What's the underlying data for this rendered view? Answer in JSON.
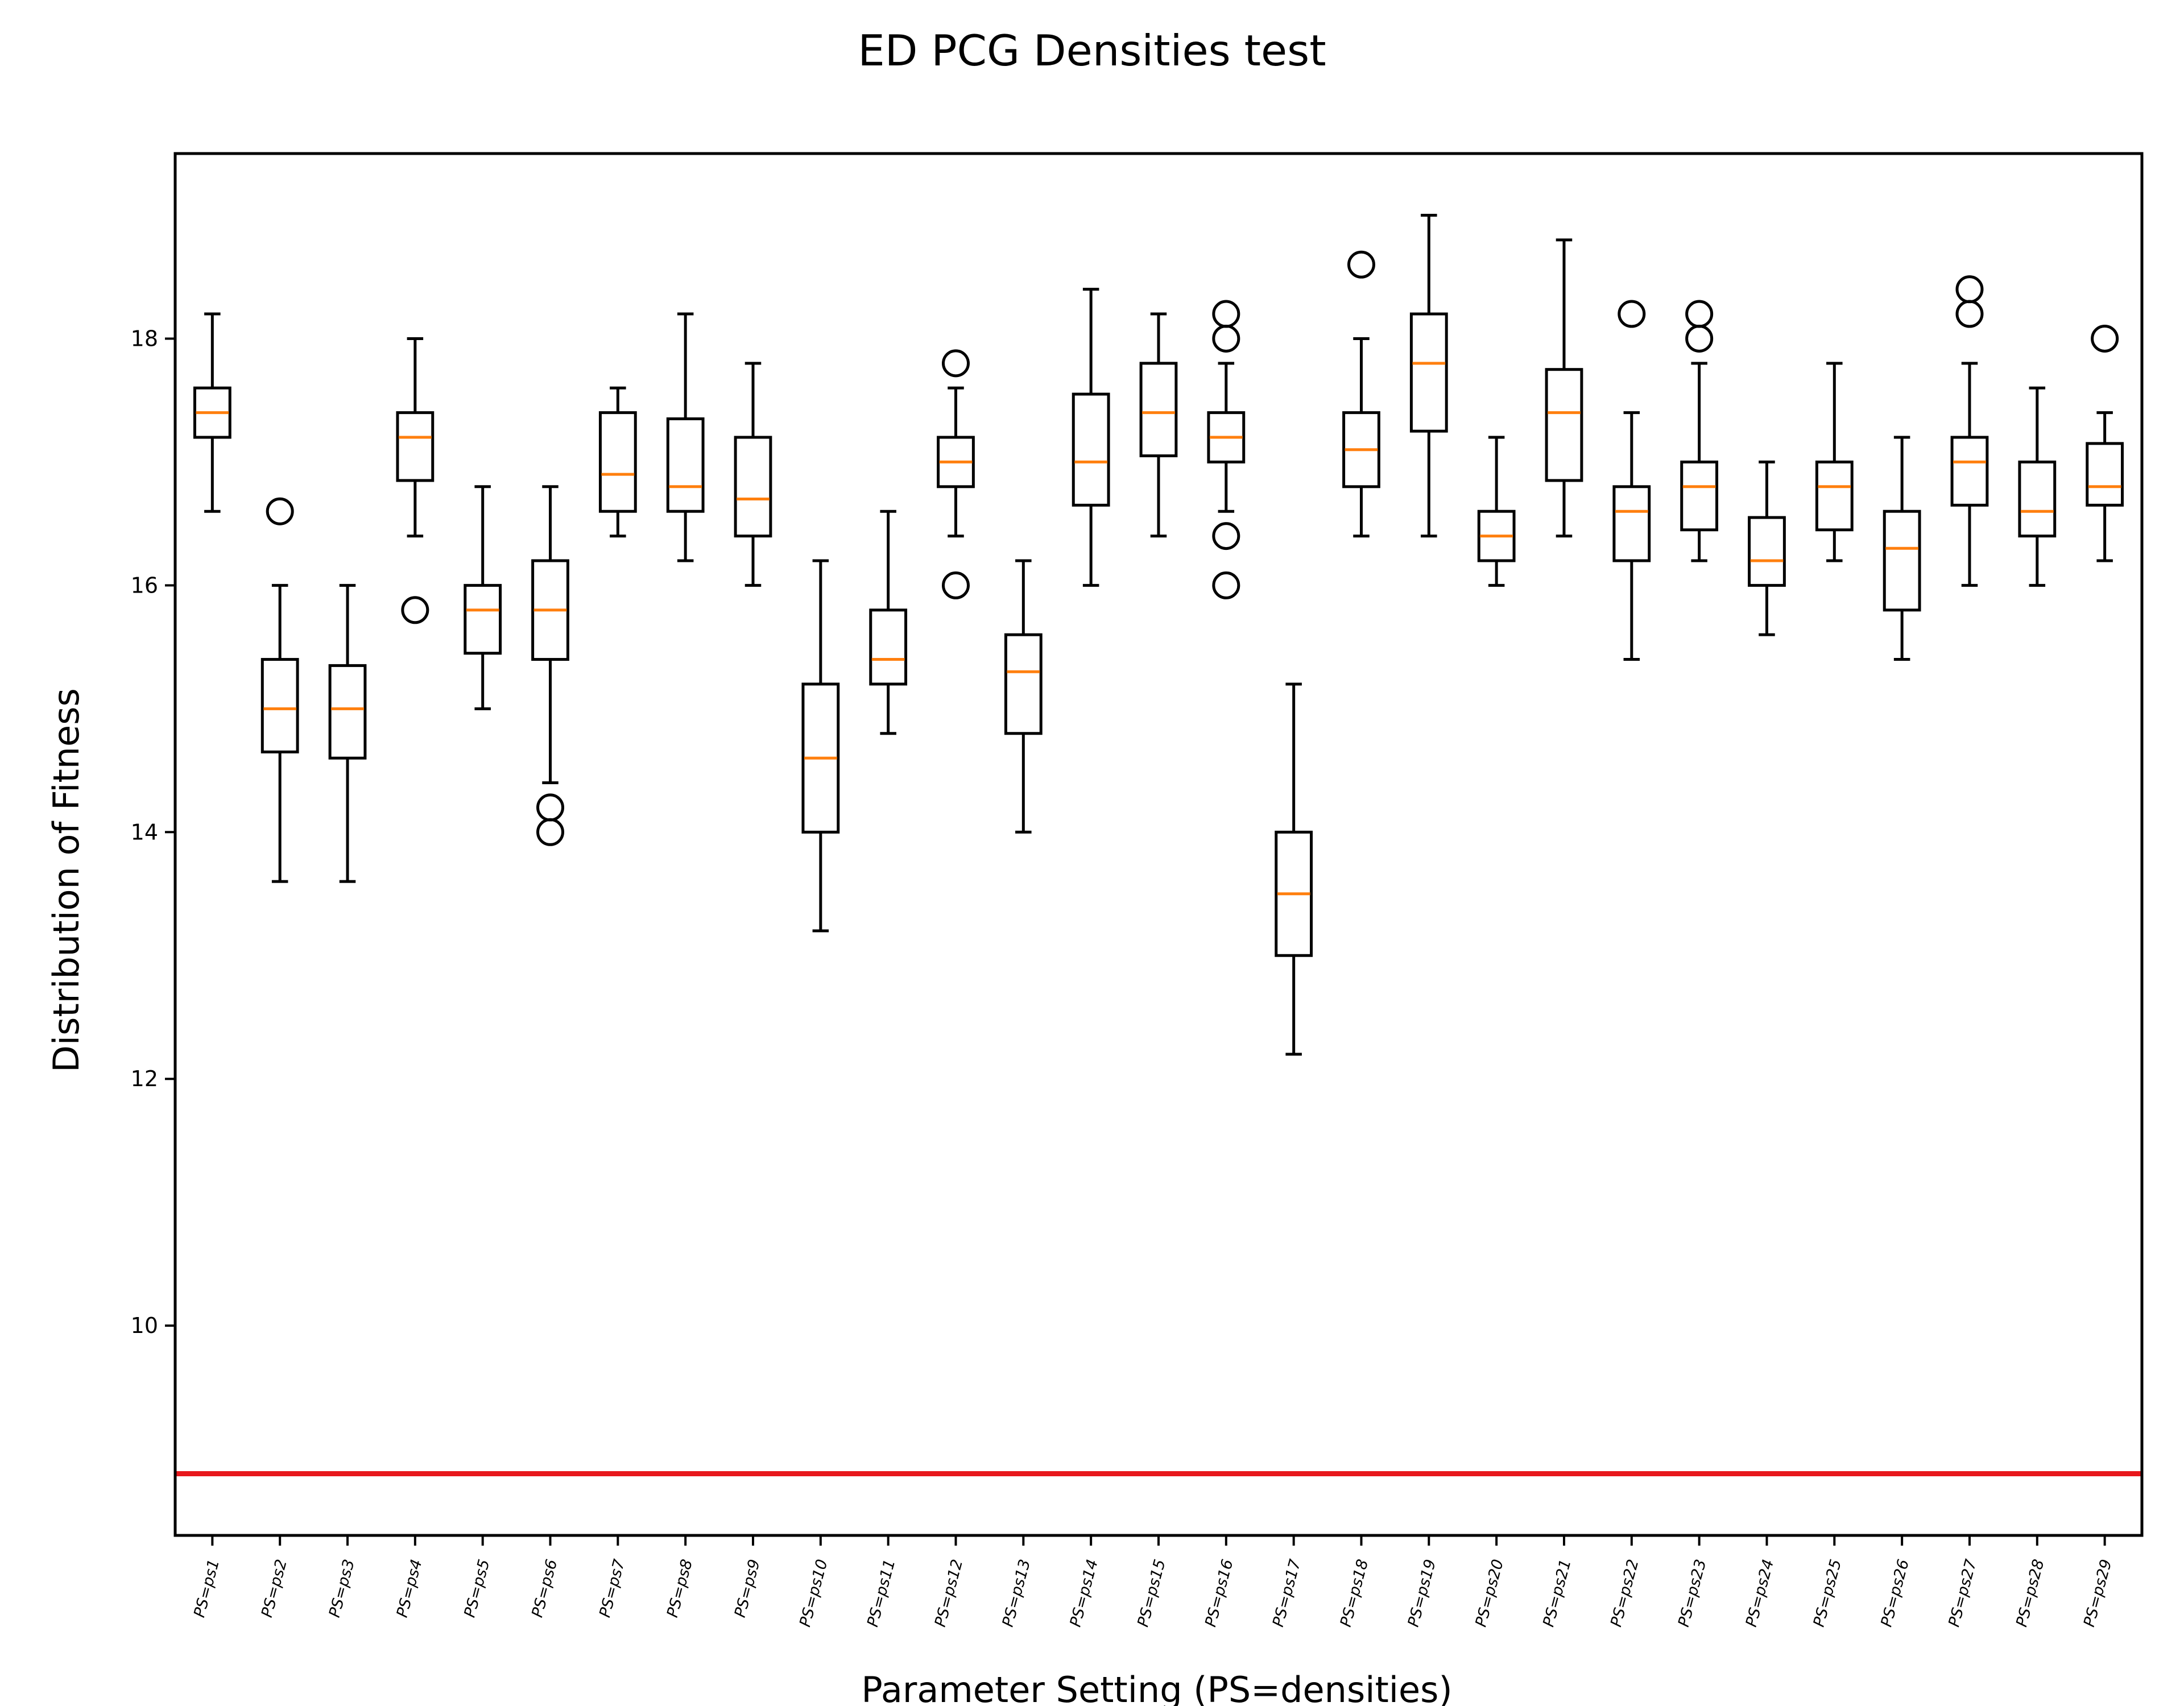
{
  "chart_data": {
    "type": "box",
    "title": "ED PCG Densities test",
    "xlabel": "Parameter Setting (PS=densities)",
    "ylabel": "Distribution of Fitness",
    "ylim": [
      8.3,
      19.5
    ],
    "yticks": [
      10,
      12,
      14,
      16,
      18
    ],
    "grid": false,
    "colors": {
      "box": "#000000",
      "median": "#ff7f0e",
      "reference_line": "#e8181c",
      "outlier": "#000000"
    },
    "reference_line": {
      "y": 8.8
    },
    "categories": [
      "PS=ps1",
      "PS=ps2",
      "PS=ps3",
      "PS=ps4",
      "PS=ps5",
      "PS=ps6",
      "PS=ps7",
      "PS=ps8",
      "PS=ps9",
      "PS=ps10",
      "PS=ps11",
      "PS=ps12",
      "PS=ps13",
      "PS=ps14",
      "PS=ps15",
      "PS=ps16",
      "PS=ps17",
      "PS=ps18",
      "PS=ps19",
      "PS=ps20",
      "PS=ps21",
      "PS=ps22",
      "PS=ps23",
      "PS=ps24",
      "PS=ps25",
      "PS=ps26",
      "PS=ps27",
      "PS=ps28",
      "PS=ps29"
    ],
    "boxes": [
      {
        "whislo": 16.6,
        "q1": 17.2,
        "med": 17.4,
        "q3": 17.6,
        "whishi": 18.2,
        "fliers": []
      },
      {
        "whislo": 13.6,
        "q1": 14.65,
        "med": 15.0,
        "q3": 15.4,
        "whishi": 16.0,
        "fliers": [
          16.6
        ]
      },
      {
        "whislo": 13.6,
        "q1": 14.6,
        "med": 15.0,
        "q3": 15.35,
        "whishi": 16.0,
        "fliers": []
      },
      {
        "whislo": 16.4,
        "q1": 16.85,
        "med": 17.2,
        "q3": 17.4,
        "whishi": 18.0,
        "fliers": [
          15.8
        ]
      },
      {
        "whislo": 15.0,
        "q1": 15.45,
        "med": 15.8,
        "q3": 16.0,
        "whishi": 16.8,
        "fliers": []
      },
      {
        "whislo": 14.4,
        "q1": 15.4,
        "med": 15.8,
        "q3": 16.2,
        "whishi": 16.8,
        "fliers": [
          14.2,
          14.0
        ]
      },
      {
        "whislo": 16.4,
        "q1": 16.6,
        "med": 16.9,
        "q3": 17.4,
        "whishi": 17.6,
        "fliers": []
      },
      {
        "whislo": 16.2,
        "q1": 16.6,
        "med": 16.8,
        "q3": 17.35,
        "whishi": 18.2,
        "fliers": []
      },
      {
        "whislo": 16.0,
        "q1": 16.4,
        "med": 16.7,
        "q3": 17.2,
        "whishi": 17.8,
        "fliers": []
      },
      {
        "whislo": 13.2,
        "q1": 14.0,
        "med": 14.6,
        "q3": 15.2,
        "whishi": 16.2,
        "fliers": []
      },
      {
        "whislo": 14.8,
        "q1": 15.2,
        "med": 15.4,
        "q3": 15.8,
        "whishi": 16.6,
        "fliers": []
      },
      {
        "whislo": 16.4,
        "q1": 16.8,
        "med": 17.0,
        "q3": 17.2,
        "whishi": 17.6,
        "fliers": [
          17.8,
          16.0
        ]
      },
      {
        "whislo": 14.0,
        "q1": 14.8,
        "med": 15.3,
        "q3": 15.6,
        "whishi": 16.2,
        "fliers": []
      },
      {
        "whislo": 16.0,
        "q1": 16.65,
        "med": 17.0,
        "q3": 17.55,
        "whishi": 18.4,
        "fliers": []
      },
      {
        "whislo": 16.4,
        "q1": 17.05,
        "med": 17.4,
        "q3": 17.8,
        "whishi": 18.2,
        "fliers": []
      },
      {
        "whislo": 16.6,
        "q1": 17.0,
        "med": 17.2,
        "q3": 17.4,
        "whishi": 17.8,
        "fliers": [
          18.2,
          18.0,
          16.4,
          16.0
        ]
      },
      {
        "whislo": 12.2,
        "q1": 13.0,
        "med": 13.5,
        "q3": 14.0,
        "whishi": 15.2,
        "fliers": []
      },
      {
        "whislo": 16.4,
        "q1": 16.8,
        "med": 17.1,
        "q3": 17.4,
        "whishi": 18.0,
        "fliers": [
          18.6
        ]
      },
      {
        "whislo": 16.4,
        "q1": 17.25,
        "med": 17.8,
        "q3": 18.2,
        "whishi": 19.0,
        "fliers": []
      },
      {
        "whislo": 16.0,
        "q1": 16.2,
        "med": 16.4,
        "q3": 16.6,
        "whishi": 17.2,
        "fliers": []
      },
      {
        "whislo": 16.4,
        "q1": 16.85,
        "med": 17.4,
        "q3": 17.75,
        "whishi": 18.8,
        "fliers": []
      },
      {
        "whislo": 15.4,
        "q1": 16.2,
        "med": 16.6,
        "q3": 16.8,
        "whishi": 17.4,
        "fliers": [
          18.2
        ]
      },
      {
        "whislo": 16.2,
        "q1": 16.45,
        "med": 16.8,
        "q3": 17.0,
        "whishi": 17.8,
        "fliers": [
          18.2,
          18.0
        ]
      },
      {
        "whislo": 15.6,
        "q1": 16.0,
        "med": 16.2,
        "q3": 16.55,
        "whishi": 17.0,
        "fliers": []
      },
      {
        "whislo": 16.2,
        "q1": 16.45,
        "med": 16.8,
        "q3": 17.0,
        "whishi": 17.8,
        "fliers": []
      },
      {
        "whislo": 15.4,
        "q1": 15.8,
        "med": 16.3,
        "q3": 16.6,
        "whishi": 17.2,
        "fliers": []
      },
      {
        "whislo": 16.0,
        "q1": 16.65,
        "med": 17.0,
        "q3": 17.2,
        "whishi": 17.8,
        "fliers": [
          18.4,
          18.2
        ]
      },
      {
        "whislo": 16.0,
        "q1": 16.4,
        "med": 16.6,
        "q3": 17.0,
        "whishi": 17.6,
        "fliers": []
      },
      {
        "whislo": 16.2,
        "q1": 16.65,
        "med": 16.8,
        "q3": 17.15,
        "whishi": 17.4,
        "fliers": [
          18.0
        ]
      }
    ]
  }
}
